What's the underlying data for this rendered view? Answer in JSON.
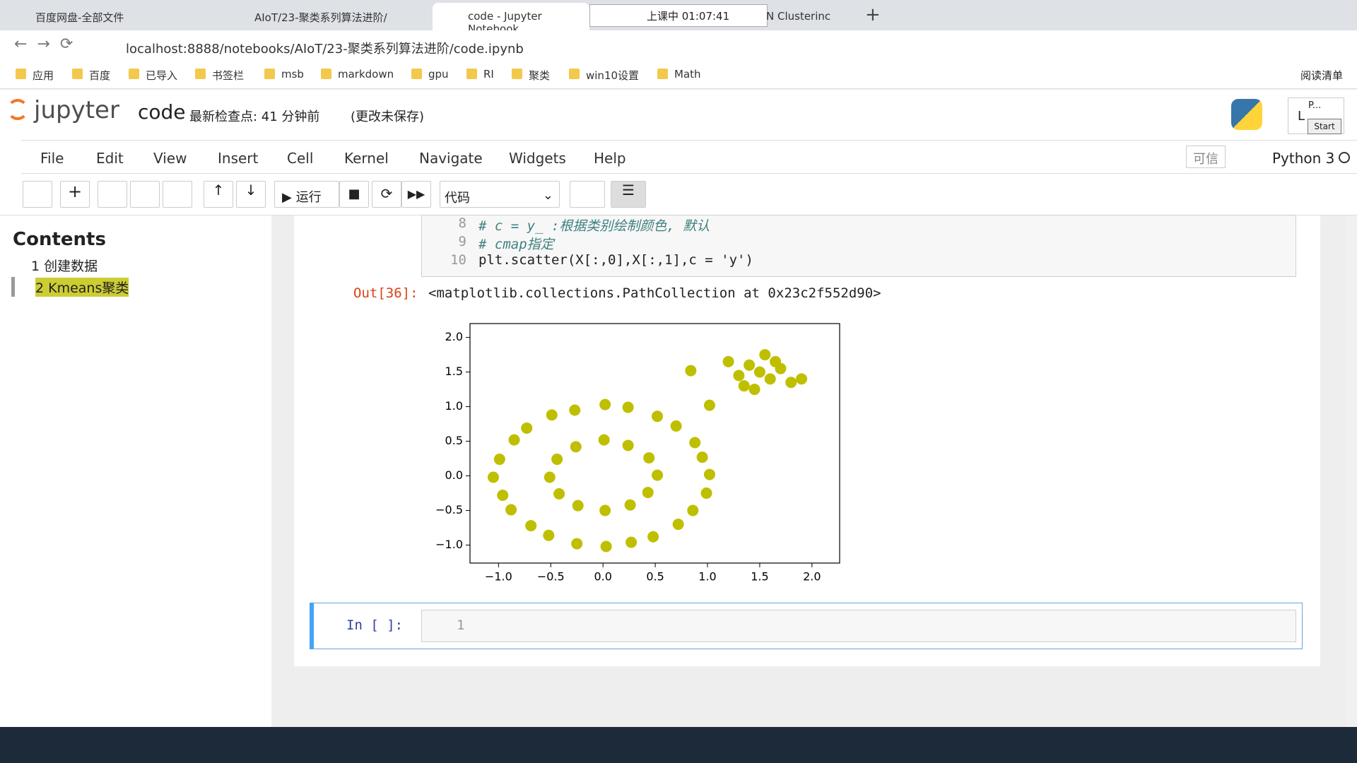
{
  "browser": {
    "tabs": [
      "百度网盘-全部文件",
      "AIoT/23-聚类系列算法进阶/",
      "code - Jupyter Notebook",
      "上课中 01:07:41",
      "N Clusterinc"
    ],
    "url": "localhost:8888/notebooks/AIoT/23-聚类系列算法进阶/code.ipynb",
    "bookmarks": [
      "应用",
      "百度",
      "已导入",
      "书签栏",
      "msb",
      "markdown",
      "gpu",
      "RI",
      "聚类",
      "win10设置",
      "Math"
    ],
    "reading_list": "阅读清单"
  },
  "header": {
    "logo": "jupyter",
    "notebook": "code",
    "checkpoint": "最新检查点: 41 分钟前",
    "unsaved": "(更改未保存)",
    "widget": "P...",
    "start": "Start",
    "user": "L"
  },
  "menu": [
    "File",
    "Edit",
    "View",
    "Insert",
    "Cell",
    "Kernel",
    "Navigate",
    "Widgets",
    "Help"
  ],
  "trusted": "可信",
  "kernel": "Python 3",
  "toolbar": {
    "run": "运行",
    "cell_type": "代码"
  },
  "toc": {
    "title": "Contents",
    "items": [
      "1 创建数据",
      "2 Kmeans聚类"
    ]
  },
  "cell": {
    "line_numbers": [
      "8",
      "9",
      "10"
    ],
    "lines": [
      "# c = y_ :根据类别绘制颜色, 默认",
      "# cmap指定",
      "plt.scatter(X[:,0],X[:,1],c = 'y')"
    ],
    "out_prompt": "Out[36]:",
    "output": "<matplotlib.collections.PathCollection at 0x23c2f552d90>"
  },
  "input_cell": {
    "prompt": "In [ ]:",
    "line_number": "1"
  },
  "chart_data": {
    "type": "scatter",
    "color": "#bfbf00",
    "x": [
      1.02,
      0.95,
      0.88,
      0.7,
      0.52,
      0.24,
      0.02,
      -0.27,
      -0.49,
      -0.73,
      -0.85,
      -0.99,
      -1.05,
      -0.96,
      -0.88,
      -0.69,
      -0.52,
      -0.25,
      0.03,
      0.27,
      0.48,
      0.72,
      0.86,
      0.99,
      0.52,
      0.44,
      0.24,
      0.01,
      -0.26,
      -0.44,
      -0.51,
      -0.42,
      -0.24,
      0.02,
      0.26,
      0.43,
      1.5,
      1.4,
      1.6,
      1.3,
      1.7,
      1.55,
      1.45,
      1.2,
      1.8,
      1.65,
      1.35,
      1.9,
      0.84,
      1.02
    ],
    "values": [
      0.02,
      0.27,
      0.48,
      0.72,
      0.86,
      0.99,
      1.03,
      0.95,
      0.88,
      0.69,
      0.52,
      0.24,
      -0.02,
      -0.28,
      -0.49,
      -0.72,
      -0.86,
      -0.98,
      -1.02,
      -0.96,
      -0.88,
      -0.7,
      -0.5,
      -0.25,
      0.01,
      0.26,
      0.44,
      0.52,
      0.42,
      0.24,
      -0.02,
      -0.26,
      -0.43,
      -0.5,
      -0.42,
      -0.24,
      1.5,
      1.6,
      1.4,
      1.45,
      1.55,
      1.75,
      1.25,
      1.65,
      1.35,
      1.65,
      1.3,
      1.4,
      1.52,
      1.02
    ],
    "xlim": [
      -1.273,
      2.265
    ],
    "ylim": [
      -1.26,
      2.2
    ],
    "xticks": [
      {
        "value": -1,
        "label": "−1.0"
      },
      {
        "value": -0.5,
        "label": "−0.5"
      },
      {
        "value": 0,
        "label": "0.0"
      },
      {
        "value": 0.5,
        "label": "0.5"
      },
      {
        "value": 1,
        "label": "1.0"
      },
      {
        "value": 1.5,
        "label": "1.5"
      },
      {
        "value": 2,
        "label": "2.0"
      }
    ],
    "yticks": [
      {
        "value": -1,
        "label": "−1.0"
      },
      {
        "value": -0.5,
        "label": "−0.5"
      },
      {
        "value": 0,
        "label": "0.0"
      },
      {
        "value": 0.5,
        "label": "0.5"
      },
      {
        "value": 1,
        "label": "1.0"
      },
      {
        "value": 1.5,
        "label": "1.5"
      },
      {
        "value": 2,
        "label": "2.0"
      }
    ]
  }
}
